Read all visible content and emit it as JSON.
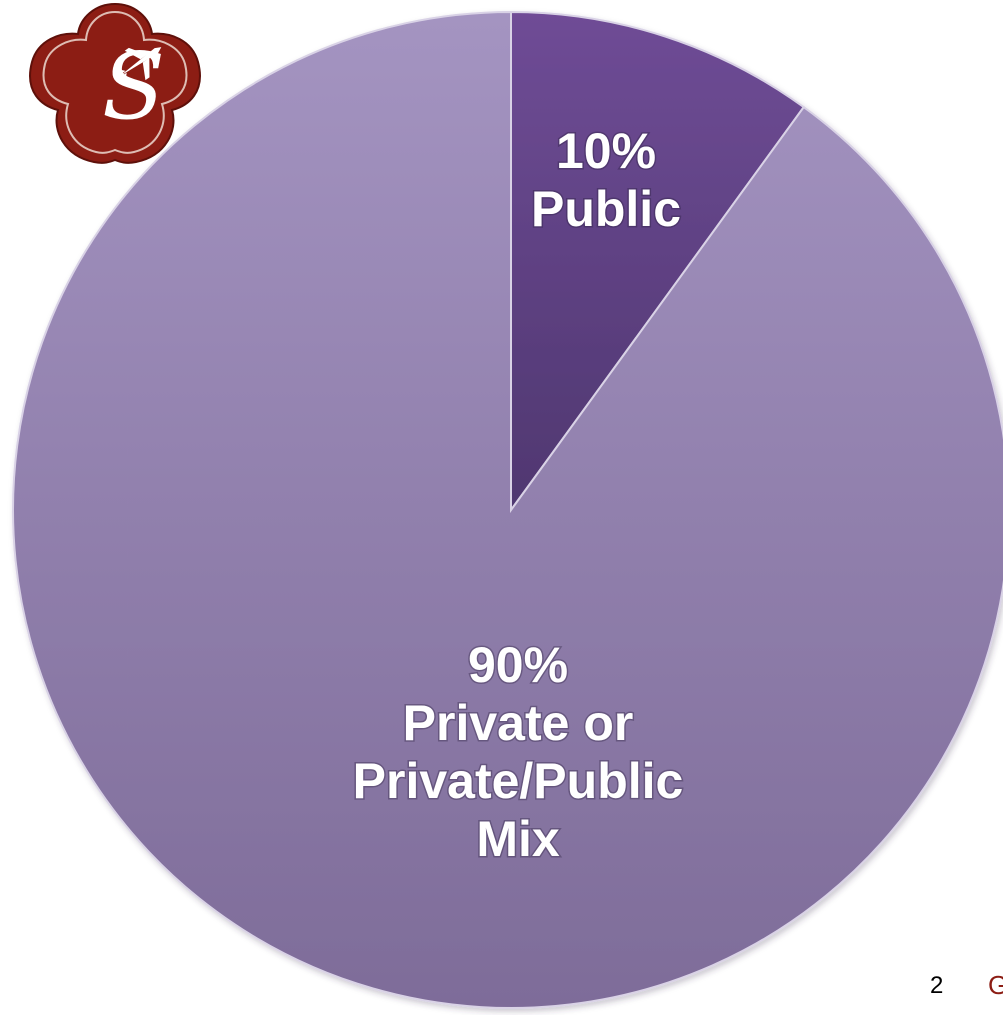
{
  "chart_data": {
    "type": "pie",
    "slices": [
      {
        "name": "Public",
        "value": 10,
        "percent_label": "10%",
        "label_lines": [
          "Public"
        ],
        "color_top": "#6f4c96",
        "color_bottom": "#4f3770"
      },
      {
        "name": "Private or Private/Public Mix",
        "value": 90,
        "percent_label": "90%",
        "label_lines": [
          "Private or",
          "Private/Public",
          "Mix"
        ],
        "color_top": "#a494c1",
        "color_bottom": "#7e6c99"
      }
    ],
    "start_angle_deg": 0,
    "direction": "clockwise",
    "explode_slice": "Public",
    "legend": "none"
  },
  "footer": {
    "page_number": "2",
    "trailing_fragment": "G"
  },
  "logo": {
    "icon": "airplane-icon",
    "monogram": "S",
    "color": "#8c1d14"
  }
}
